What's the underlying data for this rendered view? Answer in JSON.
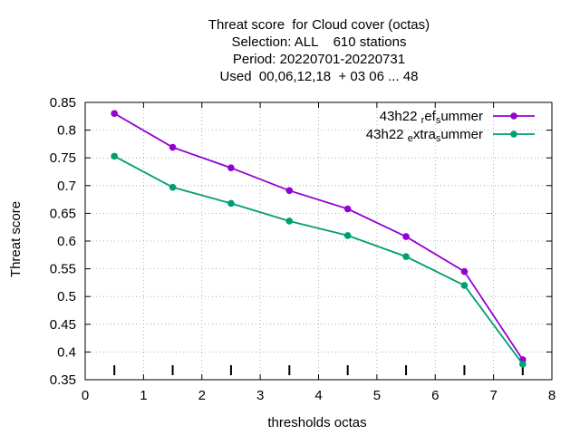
{
  "chart_data": {
    "type": "line",
    "title_lines": [
      "Threat score  for Cloud cover (octas)",
      "Selection: ALL    610 stations",
      "Period: 20220701-20220731",
      "Used  00,06,12,18  + 03 06 ... 48"
    ],
    "xlabel": "thresholds octas",
    "ylabel": "Threat score",
    "xlim": [
      0,
      8
    ],
    "ylim": [
      0.35,
      0.85
    ],
    "x_ticks": [
      "0",
      "1",
      "2",
      "3",
      "4",
      "5",
      "6",
      "7",
      "8"
    ],
    "y_ticks": [
      "0.35",
      "0.4",
      "0.45",
      "0.5",
      "0.55",
      "0.6",
      "0.65",
      "0.7",
      "0.75",
      "0.8",
      "0.85"
    ],
    "grid": true,
    "legend_position": "top-right",
    "x": [
      0.5,
      1.5,
      2.5,
      3.5,
      4.5,
      5.5,
      6.5,
      7.5
    ],
    "series": [
      {
        "name_parts": [
          {
            "text": "43h22 ",
            "shift": "none"
          },
          {
            "text": "r",
            "shift": "sub"
          },
          {
            "text": "ef",
            "shift": "none"
          },
          {
            "text": "s",
            "shift": "sub"
          },
          {
            "text": "ummer",
            "shift": "none"
          }
        ],
        "color": "#9400d3",
        "values": [
          0.83,
          0.769,
          0.732,
          0.691,
          0.658,
          0.608,
          0.545,
          0.386
        ]
      },
      {
        "name_parts": [
          {
            "text": "43h22 ",
            "shift": "none"
          },
          {
            "text": "e",
            "shift": "sub"
          },
          {
            "text": "xtra",
            "shift": "none"
          },
          {
            "text": "s",
            "shift": "sub"
          },
          {
            "text": "ummer",
            "shift": "none"
          }
        ],
        "color": "#009e73",
        "values": [
          0.753,
          0.697,
          0.668,
          0.636,
          0.61,
          0.572,
          0.52,
          0.378
        ]
      }
    ],
    "bottom_marker_x": [
      0.5,
      1.5,
      2.5,
      3.5,
      4.5,
      5.5,
      6.5,
      7.5
    ]
  }
}
